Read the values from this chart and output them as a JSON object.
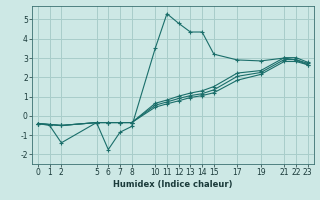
{
  "xlabel": "Humidex (Indice chaleur)",
  "bg_color": "#cde8e5",
  "grid_color": "#a8cdca",
  "line_color": "#1a6e6a",
  "xlim": [
    -0.5,
    23.5
  ],
  "ylim": [
    -2.5,
    5.7
  ],
  "xticks": [
    0,
    1,
    2,
    5,
    6,
    7,
    8,
    10,
    11,
    12,
    13,
    14,
    15,
    17,
    19,
    21,
    22,
    23
  ],
  "yticks": [
    -2,
    -1,
    0,
    1,
    2,
    3,
    4,
    5
  ],
  "lines": [
    {
      "x": [
        0,
        1,
        2,
        5,
        6,
        7,
        8,
        10,
        11,
        12,
        13,
        14,
        15,
        17,
        19,
        21,
        22,
        23
      ],
      "y": [
        -0.4,
        -0.5,
        -1.4,
        -0.35,
        -1.75,
        -0.85,
        -0.55,
        3.5,
        5.3,
        4.8,
        4.35,
        4.35,
        3.2,
        2.9,
        2.85,
        3.0,
        2.9,
        2.65
      ]
    },
    {
      "x": [
        0,
        1,
        2,
        5,
        6,
        7,
        8,
        10,
        11,
        12,
        13,
        14,
        15,
        17,
        19,
        21,
        22,
        23
      ],
      "y": [
        -0.4,
        -0.45,
        -0.5,
        -0.35,
        -0.35,
        -0.35,
        -0.35,
        0.45,
        0.62,
        0.78,
        0.95,
        1.05,
        1.2,
        1.85,
        2.15,
        2.82,
        2.82,
        2.65
      ]
    },
    {
      "x": [
        0,
        1,
        2,
        5,
        6,
        7,
        8,
        10,
        11,
        12,
        13,
        14,
        15,
        17,
        19,
        21,
        22,
        23
      ],
      "y": [
        -0.4,
        -0.45,
        -0.5,
        -0.35,
        -0.35,
        -0.35,
        -0.35,
        0.55,
        0.72,
        0.9,
        1.05,
        1.15,
        1.35,
        2.05,
        2.25,
        2.92,
        2.92,
        2.72
      ]
    },
    {
      "x": [
        0,
        1,
        2,
        5,
        6,
        7,
        8,
        10,
        11,
        12,
        13,
        14,
        15,
        17,
        19,
        21,
        22,
        23
      ],
      "y": [
        -0.4,
        -0.45,
        -0.5,
        -0.35,
        -0.35,
        -0.35,
        -0.35,
        0.65,
        0.82,
        1.02,
        1.18,
        1.3,
        1.52,
        2.22,
        2.35,
        3.02,
        3.02,
        2.78
      ]
    }
  ]
}
